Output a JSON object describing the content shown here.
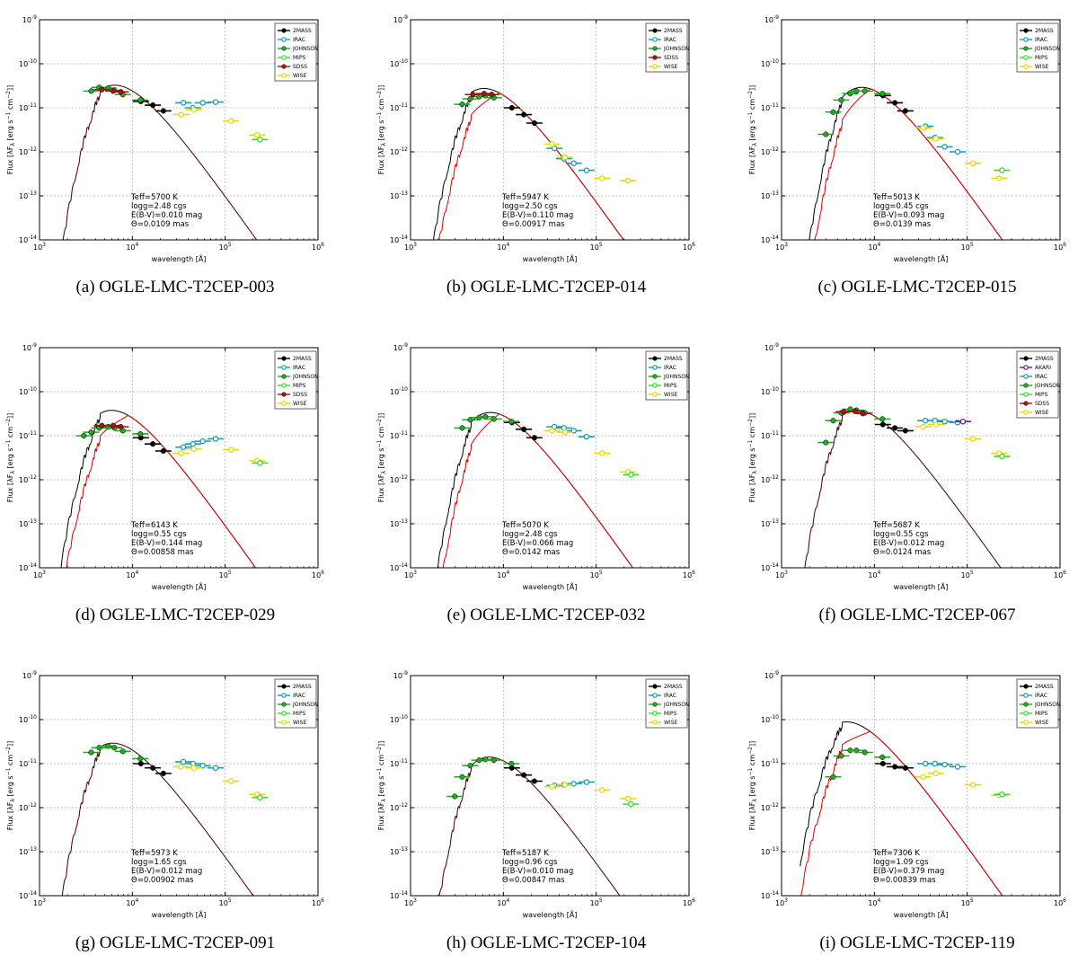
{
  "figure": {
    "xlabel": "wavelength [Å]",
    "ylabel": "Flux [λF",
    "ylabel_sub": "λ",
    "ylabel_units": " [erg s",
    "ylabel_units2": " cm",
    "ylabel_end": "]]",
    "ylabel_exp1": "−1",
    "ylabel_exp2": "−2",
    "x_tick_base": "10",
    "x_tick_exps": [
      "3",
      "4",
      "5",
      "6"
    ],
    "y_tick_base": "10",
    "y_tick_exps": [
      "-14",
      "-13",
      "-12",
      "-11",
      "-10",
      "-9"
    ]
  },
  "colors": {
    "2MASS": "#000000",
    "IRAC": "#1a9bb0",
    "JOHNSON": "#22aa22",
    "MIPS": "#33dd33",
    "SDSS": "#aa1111",
    "WISE": "#e8d800",
    "AKARI": "#6a1a8a",
    "model_black": "#000000",
    "model_red": "#dd0000",
    "grid": "#b0b0b0"
  },
  "chart_data": [
    {
      "type": "scatter",
      "caption": "(a) OGLE-LMC-T2CEP-003",
      "params": [
        "Teff=5700 K",
        "logg=2.48 cgs",
        "E(B-V)=0.010 mag",
        "Θ=0.0109 mas"
      ],
      "legend": [
        "2MASS",
        "IRAC",
        "JOHNSON",
        "MIPS",
        "SDSS",
        "WISE"
      ],
      "xlim": [
        1000,
        1000000
      ],
      "ylim": [
        1e-14,
        1e-09
      ],
      "model_peak": {
        "wavelength": 5800,
        "flux": 3.2e-11
      },
      "reddened": false,
      "series": [
        {
          "name": "2MASS",
          "x": [
            12350,
            16620,
            21590
          ],
          "y": [
            1.4e-11,
            1.15e-11,
            8.5e-12
          ]
        },
        {
          "name": "JOHNSON",
          "x": [
            3600,
            4400,
            5500,
            6400,
            7900,
            12200
          ],
          "y": [
            2.4e-11,
            2.9e-11,
            2.8e-11,
            2.5e-11,
            2e-11,
            1.5e-11
          ]
        },
        {
          "name": "SDSS",
          "x": [
            4700,
            6200,
            7500
          ],
          "y": [
            2.6e-11,
            2.4e-11,
            2.3e-11
          ]
        },
        {
          "name": "IRAC",
          "x": [
            35500,
            44930,
            57310,
            78720
          ],
          "y": [
            1.3e-11,
            1e-11,
            1.3e-11,
            1.35e-11
          ]
        },
        {
          "name": "WISE",
          "x": [
            33500,
            46000,
            115600,
            220900
          ],
          "y": [
            7e-12,
            9e-12,
            5e-12,
            2.4e-12
          ]
        },
        {
          "name": "MIPS",
          "x": [
            237000
          ],
          "y": [
            1.9e-12
          ]
        }
      ]
    },
    {
      "type": "scatter",
      "caption": "(b) OGLE-LMC-T2CEP-014",
      "params": [
        "Teff=5947 K",
        "logg=2.50 cgs",
        "E(B-V)=0.110 mag",
        "Θ=0.00917 mas"
      ],
      "legend": [
        "2MASS",
        "IRAC",
        "JOHNSON",
        "SDSS",
        "WISE"
      ],
      "xlim": [
        1000,
        1000000
      ],
      "ylim": [
        1e-14,
        1e-09
      ],
      "model_peak": {
        "wavelength": 5600,
        "flux": 2.7e-11
      },
      "reddened": true,
      "series": [
        {
          "name": "2MASS",
          "x": [
            12350,
            16620,
            21590
          ],
          "y": [
            1e-11,
            7e-12,
            4.5e-12
          ]
        },
        {
          "name": "JOHNSON",
          "x": [
            3600,
            4400,
            5500,
            6400,
            7900
          ],
          "y": [
            1.2e-11,
            1.6e-11,
            1.8e-11,
            1.9e-11,
            1.7e-11
          ]
        },
        {
          "name": "SDSS",
          "x": [
            4700,
            6200,
            7500
          ],
          "y": [
            2e-11,
            2.1e-11,
            2e-11
          ]
        },
        {
          "name": "IRAC",
          "x": [
            35500,
            44930,
            57310,
            78720
          ],
          "y": [
            1.2e-12,
            7e-13,
            5.5e-13,
            3.8e-13
          ]
        },
        {
          "name": "WISE",
          "x": [
            33500,
            46000,
            115600,
            220900
          ],
          "y": [
            1.5e-12,
            7.5e-13,
            2.5e-13,
            2.2e-13
          ]
        }
      ]
    },
    {
      "type": "scatter",
      "caption": "(c) OGLE-LMC-T2CEP-015",
      "params": [
        "Teff=5013 K",
        "logg=0.45 cgs",
        "E(B-V)=0.093 mag",
        "Θ=0.0139 mas"
      ],
      "legend": [
        "2MASS",
        "IRAC",
        "JOHNSON",
        "MIPS",
        "WISE"
      ],
      "xlim": [
        1000,
        1000000
      ],
      "ylim": [
        1e-14,
        1e-09
      ],
      "model_peak": {
        "wavelength": 7000,
        "flux": 2.9e-11
      },
      "reddened": true,
      "series": [
        {
          "name": "2MASS",
          "x": [
            12350,
            16620,
            21590
          ],
          "y": [
            1.9e-11,
            1.3e-11,
            8.5e-12
          ]
        },
        {
          "name": "JOHNSON",
          "x": [
            3000,
            3600,
            4400,
            5500,
            6400,
            7900,
            12200
          ],
          "y": [
            2.5e-12,
            8e-12,
            1.5e-11,
            2.1e-11,
            2.4e-11,
            2.4e-11,
            2.1e-11
          ]
        },
        {
          "name": "IRAC",
          "x": [
            35500,
            44930,
            57310,
            78720
          ],
          "y": [
            3.8e-12,
            2.1e-12,
            1.3e-12,
            1e-12
          ]
        },
        {
          "name": "WISE",
          "x": [
            33500,
            46000,
            115600,
            220900
          ],
          "y": [
            3.5e-12,
            2e-12,
            5.5e-13,
            2.5e-13
          ]
        },
        {
          "name": "MIPS",
          "x": [
            237000
          ],
          "y": [
            3.8e-13
          ]
        }
      ]
    },
    {
      "type": "scatter",
      "caption": "(d) OGLE-LMC-T2CEP-029",
      "params": [
        "Teff=6143 K",
        "logg=0.55 cgs",
        "E(B-V)=0.144 mag",
        "Θ=0.00858 mas"
      ],
      "legend": [
        "2MASS",
        "IRAC",
        "JOHNSON",
        "MIPS",
        "SDSS",
        "WISE"
      ],
      "xlim": [
        1000,
        1000000
      ],
      "ylim": [
        1e-14,
        1e-09
      ],
      "model_peak": {
        "wavelength": 4200,
        "flux": 2.9e-11
      },
      "reddened": true,
      "series": [
        {
          "name": "2MASS",
          "x": [
            12350,
            16620,
            21590
          ],
          "y": [
            9e-12,
            6.5e-12,
            4.5e-12
          ]
        },
        {
          "name": "JOHNSON",
          "x": [
            3000,
            3600,
            4400,
            5500,
            6400,
            7900,
            12200
          ],
          "y": [
            1e-11,
            1.2e-11,
            1.5e-11,
            1.6e-11,
            1.5e-11,
            1.3e-11,
            1.1e-11
          ]
        },
        {
          "name": "SDSS",
          "x": [
            4700,
            6200,
            7500
          ],
          "y": [
            1.7e-11,
            1.7e-11,
            1.6e-11
          ]
        },
        {
          "name": "IRAC",
          "x": [
            35500,
            44930,
            57310,
            78720
          ],
          "y": [
            5.5e-12,
            6.5e-12,
            7.5e-12,
            8.5e-12
          ]
        },
        {
          "name": "WISE",
          "x": [
            33500,
            46000,
            115600,
            220900
          ],
          "y": [
            4e-12,
            5e-12,
            4.8e-12,
            2.7e-12
          ]
        },
        {
          "name": "MIPS",
          "x": [
            237000
          ],
          "y": [
            2.4e-12
          ]
        }
      ]
    },
    {
      "type": "scatter",
      "caption": "(e) OGLE-LMC-T2CEP-032",
      "params": [
        "Teff=5070 K",
        "logg=2.48 cgs",
        "E(B-V)=0.066 mag",
        "Θ=0.0142 mas"
      ],
      "legend": [
        "2MASS",
        "IRAC",
        "JOHNSON",
        "MIPS",
        "WISE"
      ],
      "xlim": [
        1000,
        1000000
      ],
      "ylim": [
        1e-14,
        1e-09
      ],
      "model_peak": {
        "wavelength": 6500,
        "flux": 3.3e-11
      },
      "reddened": true,
      "series": [
        {
          "name": "2MASS",
          "x": [
            12350,
            16620,
            21590
          ],
          "y": [
            2e-11,
            1.4e-11,
            9e-12
          ]
        },
        {
          "name": "JOHNSON",
          "x": [
            3600,
            4400,
            5500,
            6400,
            7900,
            12200
          ],
          "y": [
            1.5e-11,
            2.3e-11,
            2.6e-11,
            2.7e-11,
            2.4e-11,
            2.1e-11
          ]
        },
        {
          "name": "IRAC",
          "x": [
            35500,
            44930,
            57310,
            78720
          ],
          "y": [
            1.6e-11,
            1.5e-11,
            1.3e-11,
            9.5e-12
          ]
        },
        {
          "name": "WISE",
          "x": [
            33500,
            46000,
            115600,
            220900
          ],
          "y": [
            1.3e-11,
            1.2e-11,
            4e-12,
            1.5e-12
          ]
        },
        {
          "name": "MIPS",
          "x": [
            237000
          ],
          "y": [
            1.3e-12
          ]
        }
      ]
    },
    {
      "type": "scatter",
      "caption": "(f) OGLE-LMC-T2CEP-067",
      "params": [
        "Teff=5687 K",
        "logg=0.55 cgs",
        "E(B-V)=0.012 mag",
        "Θ=0.0124 mas"
      ],
      "legend": [
        "2MASS",
        "AKARI",
        "IRAC",
        "JOHNSON",
        "MIPS",
        "SDSS",
        "WISE"
      ],
      "xlim": [
        1000,
        1000000
      ],
      "ylim": [
        1e-14,
        1e-09
      ],
      "model_peak": {
        "wavelength": 5500,
        "flux": 3.6e-11
      },
      "reddened": false,
      "series": [
        {
          "name": "2MASS",
          "x": [
            12350,
            16620,
            21590
          ],
          "y": [
            1.8e-11,
            1.5e-11,
            1.3e-11
          ]
        },
        {
          "name": "JOHNSON",
          "x": [
            3000,
            3600,
            4400,
            5500,
            6400,
            7900,
            12200
          ],
          "y": [
            7e-12,
            2.2e-11,
            3.3e-11,
            4e-11,
            3.8e-11,
            3.3e-11,
            2.4e-11
          ]
        },
        {
          "name": "SDSS",
          "x": [
            4700,
            6200,
            7500
          ],
          "y": [
            3.5e-11,
            3.6e-11,
            3.2e-11
          ]
        },
        {
          "name": "IRAC",
          "x": [
            35500,
            44930,
            57310,
            78720
          ],
          "y": [
            2.2e-11,
            2.2e-11,
            2.1e-11,
            2e-11
          ]
        },
        {
          "name": "AKARI",
          "x": [
            90000
          ],
          "y": [
            2.1e-11
          ]
        },
        {
          "name": "WISE",
          "x": [
            33500,
            46000,
            115600,
            220900
          ],
          "y": [
            1.6e-11,
            1.8e-11,
            8.5e-12,
            4e-12
          ]
        },
        {
          "name": "MIPS",
          "x": [
            237000
          ],
          "y": [
            3.4e-12
          ]
        }
      ]
    },
    {
      "type": "scatter",
      "caption": "(g) OGLE-LMC-T2CEP-091",
      "params": [
        "Teff=5973 K",
        "logg=1.65 cgs",
        "E(B-V)=0.012 mag",
        "Θ=0.00902 mas"
      ],
      "legend": [
        "2MASS",
        "IRAC",
        "JOHNSON",
        "MIPS",
        "WISE"
      ],
      "xlim": [
        1000,
        1000000
      ],
      "ylim": [
        1e-14,
        1e-09
      ],
      "model_peak": {
        "wavelength": 5300,
        "flux": 2.8e-11
      },
      "reddened": false,
      "series": [
        {
          "name": "2MASS",
          "x": [
            12350,
            16620,
            21590
          ],
          "y": [
            1e-11,
            8e-12,
            6e-12
          ]
        },
        {
          "name": "JOHNSON",
          "x": [
            3600,
            4400,
            5500,
            6400,
            7900,
            12200
          ],
          "y": [
            1.8e-11,
            2.3e-11,
            2.5e-11,
            2.3e-11,
            1.9e-11,
            1.3e-11
          ]
        },
        {
          "name": "IRAC",
          "x": [
            35500,
            44930,
            57310,
            78720
          ],
          "y": [
            1.1e-11,
            1e-11,
            9e-12,
            8e-12
          ]
        },
        {
          "name": "WISE",
          "x": [
            33500,
            46000,
            115600,
            220900
          ],
          "y": [
            8.5e-12,
            8e-12,
            4e-12,
            2e-12
          ]
        },
        {
          "name": "MIPS",
          "x": [
            237000
          ],
          "y": [
            1.7e-12
          ]
        }
      ]
    },
    {
      "type": "scatter",
      "caption": "(h) OGLE-LMC-T2CEP-104",
      "params": [
        "Teff=5187 K",
        "logg=0.96 cgs",
        "E(B-V)=0.010 mag",
        "Θ=0.00847 mas"
      ],
      "legend": [
        "2MASS",
        "IRAC",
        "JOHNSON",
        "MIPS",
        "WISE"
      ],
      "xlim": [
        1000,
        1000000
      ],
      "ylim": [
        1e-14,
        1e-09
      ],
      "model_peak": {
        "wavelength": 6800,
        "flux": 1.4e-11
      },
      "reddened": false,
      "series": [
        {
          "name": "2MASS",
          "x": [
            12350,
            16620,
            21590
          ],
          "y": [
            8e-12,
            5.5e-12,
            4e-12
          ]
        },
        {
          "name": "JOHNSON",
          "x": [
            3000,
            3600,
            4400,
            5500,
            6400,
            7900,
            12200
          ],
          "y": [
            1.8e-12,
            5e-12,
            9e-12,
            1.2e-11,
            1.25e-11,
            1.2e-11,
            1e-11
          ]
        },
        {
          "name": "IRAC",
          "x": [
            35500,
            44930,
            57310,
            78720
          ],
          "y": [
            3.2e-12,
            3.3e-12,
            3.5e-12,
            3.8e-12
          ]
        },
        {
          "name": "WISE",
          "x": [
            33500,
            46000,
            115600,
            220900
          ],
          "y": [
            3e-12,
            3.3e-12,
            2.5e-12,
            1.6e-12
          ]
        },
        {
          "name": "MIPS",
          "x": [
            237000
          ],
          "y": [
            1.2e-12
          ]
        }
      ]
    },
    {
      "type": "scatter",
      "caption": "(i) OGLE-LMC-T2CEP-119",
      "params": [
        "Teff=7306 K",
        "logg=1.09 cgs",
        "E(B-V)=0.379 mag",
        "Θ=0.00839 mas"
      ],
      "legend": [
        "2MASS",
        "IRAC",
        "JOHNSON",
        "MIPS",
        "WISE"
      ],
      "xlim": [
        1000,
        1000000
      ],
      "ylim": [
        1e-14,
        1e-09
      ],
      "model_peak": {
        "wavelength": 4000,
        "flux": 8e-11
      },
      "reddened": true,
      "series": [
        {
          "name": "2MASS",
          "x": [
            12350,
            16620,
            21590
          ],
          "y": [
            1e-11,
            8.5e-12,
            8e-12
          ]
        },
        {
          "name": "JOHNSON",
          "x": [
            3600,
            4400,
            5500,
            6400,
            7900,
            12200
          ],
          "y": [
            5e-12,
            1.5e-11,
            2e-11,
            2e-11,
            1.8e-11,
            1.4e-11
          ]
        },
        {
          "name": "IRAC",
          "x": [
            35500,
            44930,
            57310,
            78720
          ],
          "y": [
            1e-11,
            1e-11,
            9.5e-12,
            8.5e-12
          ]
        },
        {
          "name": "WISE",
          "x": [
            33500,
            46000,
            115600,
            220900
          ],
          "y": [
            5e-12,
            6e-12,
            3.3e-12,
            1.9e-12
          ]
        },
        {
          "name": "MIPS",
          "x": [
            237000
          ],
          "y": [
            2e-12
          ]
        }
      ]
    }
  ]
}
